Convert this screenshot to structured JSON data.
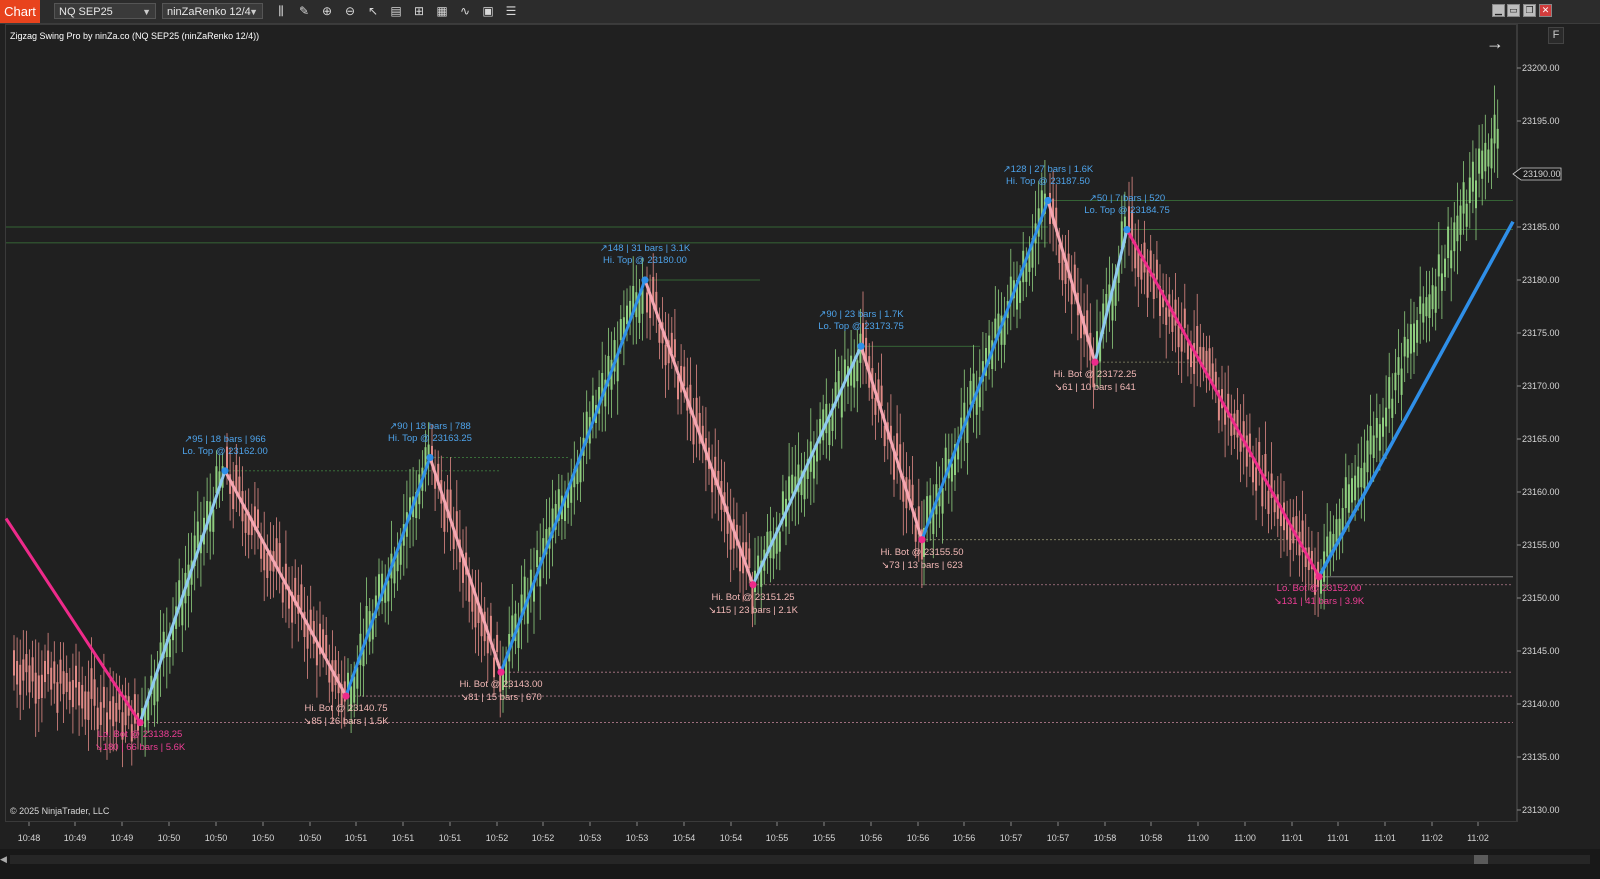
{
  "toolbar": {
    "tab_label": "Chart",
    "instrument": "NQ SEP25",
    "bar_type": "ninZaRenko 12/4",
    "tools": [
      {
        "name": "bars-type-icon",
        "glyph": "⫼"
      },
      {
        "name": "pencil-icon",
        "glyph": "✎"
      },
      {
        "name": "zoom-in-icon",
        "glyph": "⊕"
      },
      {
        "name": "zoom-out-icon",
        "glyph": "⊖"
      },
      {
        "name": "pointer-icon",
        "glyph": "↖"
      },
      {
        "name": "data-box-icon",
        "glyph": "▤"
      },
      {
        "name": "chart-trader-icon",
        "glyph": "⊞"
      },
      {
        "name": "strategies-icon",
        "glyph": "▦"
      },
      {
        "name": "indicators-icon",
        "glyph": "∿"
      },
      {
        "name": "templates-icon",
        "glyph": "▣"
      },
      {
        "name": "properties-icon",
        "glyph": "☰"
      }
    ],
    "window_buttons": [
      {
        "name": "minimize-window-button",
        "glyph": "▁"
      },
      {
        "name": "restore-window-button",
        "glyph": "▭"
      },
      {
        "name": "tile-window-button",
        "glyph": "❐"
      },
      {
        "name": "close-window-button",
        "glyph": "✕"
      }
    ]
  },
  "indicator_label": "Zigzag Swing Pro by ninZa.co (NQ SEP25 (ninZaRenko 12/4))",
  "copyright": "© 2025 NinjaTrader, LLC",
  "side_button": "F",
  "colors": {
    "up_bar": "#8fcf7f",
    "down_bar": "#e08a86",
    "swing_up": "#2f8fe8",
    "swing_up_light": "#8fcaf0",
    "swing_down": "#ee2a8a",
    "swing_down_light": "#f4a7b2",
    "text_top": "#4ea3ea",
    "text_bot_hi": "#f2b8b6",
    "text_bot_lo": "#ee3e96",
    "price_marker": "#cfcfcf"
  },
  "chart_data": {
    "type": "candlestick",
    "instrument": "NQ SEP25",
    "bars": "ninZaRenko 12/4",
    "ylim": [
      23128.5,
      23204.5
    ],
    "y_ticks": [
      "23130.00",
      "23135.00",
      "23140.00",
      "23145.00",
      "23150.00",
      "23155.00",
      "23160.00",
      "23165.00",
      "23170.00",
      "23175.00",
      "23180.00",
      "23185.00",
      "23190.00",
      "23195.00",
      "23200.00"
    ],
    "x_ticks": [
      "10:48",
      "10:49",
      "10:49",
      "10:50",
      "10:50",
      "10:50",
      "10:50",
      "10:51",
      "10:51",
      "10:51",
      "10:52",
      "10:52",
      "10:53",
      "10:53",
      "10:54",
      "10:54",
      "10:55",
      "10:55",
      "10:56",
      "10:56",
      "10:56",
      "10:57",
      "10:57",
      "10:58",
      "10:58",
      "11:00",
      "11:00",
      "11:01",
      "11:01",
      "11:01",
      "11:02",
      "11:02"
    ],
    "current_price": "23190.00",
    "swings": [
      {
        "kind": "bot",
        "label": "Lo. Bot @ 23138.25",
        "stats": "↘180  |  66 bars  |  5.6K",
        "price": 23138.25
      },
      {
        "kind": "top",
        "label": "Lo. Top @ 23162.00",
        "stats": "↗95  |  18 bars  |  966",
        "price": 23162.0
      },
      {
        "kind": "bot",
        "label": "Hi. Bot @ 23140.75",
        "stats": "↘85  |  26 bars  |  1.5K",
        "price": 23140.75
      },
      {
        "kind": "top",
        "label": "Hi. Top @ 23163.25",
        "stats": "↗90  |  18 bars  |  788",
        "price": 23163.25
      },
      {
        "kind": "bot",
        "label": "Hi. Bot @ 23143.00",
        "stats": "↘81  |  15 bars  |  670",
        "price": 23143.0
      },
      {
        "kind": "top",
        "label": "Hi. Top @ 23180.00",
        "stats": "↗148  |  31 bars  |  3.1K",
        "price": 23180.0
      },
      {
        "kind": "bot",
        "label": "Hi. Bot @ 23151.25",
        "stats": "↘115  |  23 bars  |  2.1K",
        "price": 23151.25
      },
      {
        "kind": "top",
        "label": "Lo. Top @ 23173.75",
        "stats": "↗90  |  23 bars  |  1.7K",
        "price": 23173.75
      },
      {
        "kind": "bot",
        "label": "Hi. Bot @ 23155.50",
        "stats": "↘73  |  13 bars  |  623",
        "price": 23155.5
      },
      {
        "kind": "top",
        "label": "Hi. Top @ 23187.50",
        "stats": "↗128  |  27 bars  |  1.6K",
        "price": 23187.5
      },
      {
        "kind": "bot",
        "label": "Hi. Bot @ 23172.25",
        "stats": "↘61  |  10 bars  |  641",
        "price": 23172.25
      },
      {
        "kind": "top",
        "label": "Lo. Top @ 23184.75",
        "stats": "↗50  |  7 bars  |  520",
        "price": 23184.75
      },
      {
        "kind": "bot",
        "label": "Lo. Bot @ 23152.00",
        "stats": "↘131  |  41 bars  |  3.9K",
        "price": 23152.0
      }
    ]
  }
}
